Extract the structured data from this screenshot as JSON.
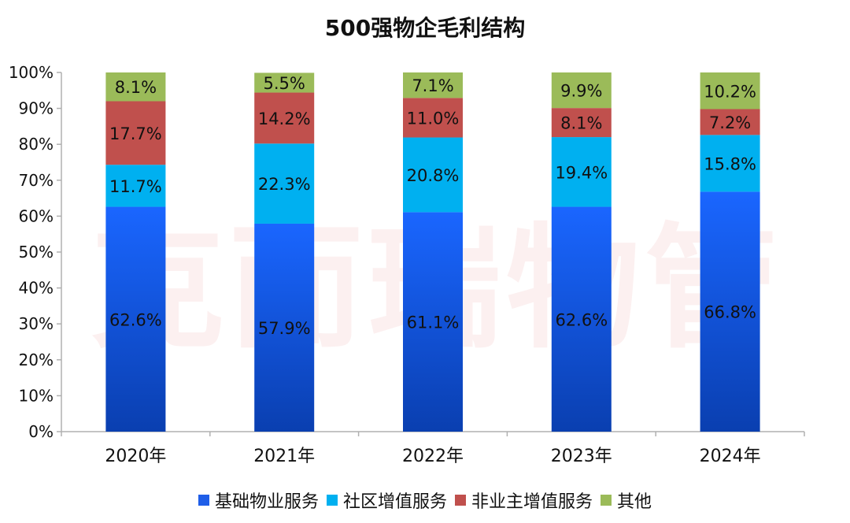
{
  "watermark": "克而瑞物管",
  "chart_data": {
    "type": "bar",
    "stacked": true,
    "title": "500强物企毛利结构",
    "categories": [
      "2020年",
      "2021年",
      "2022年",
      "2023年",
      "2024年"
    ],
    "y_ticks": [
      "0%",
      "10%",
      "20%",
      "30%",
      "40%",
      "50%",
      "60%",
      "70%",
      "80%",
      "90%",
      "100%"
    ],
    "ylim": [
      0,
      100
    ],
    "grid": false,
    "legend_position": "bottom",
    "series": [
      {
        "name": "基础物业服务",
        "color": "#1f5ee8",
        "values": [
          62.6,
          57.9,
          61.1,
          62.6,
          66.8
        ],
        "labels": [
          "62.6%",
          "57.9%",
          "61.1%",
          "62.6%",
          "66.8%"
        ]
      },
      {
        "name": "社区增值服务",
        "color": "#00b0f0",
        "values": [
          11.7,
          22.3,
          20.8,
          19.4,
          15.8
        ],
        "labels": [
          "11.7%",
          "22.3%",
          "20.8%",
          "19.4%",
          "15.8%"
        ]
      },
      {
        "name": "非业主增值服务",
        "color": "#c0504d",
        "values": [
          17.7,
          14.2,
          11.0,
          8.1,
          7.2
        ],
        "labels": [
          "17.7%",
          "14.2%",
          "11.0%",
          "8.1%",
          "7.2%"
        ]
      },
      {
        "name": "其他",
        "color": "#9bbb59",
        "values": [
          8.1,
          5.5,
          7.1,
          9.9,
          10.2
        ],
        "labels": [
          "8.1%",
          "5.5%",
          "7.1%",
          "9.9%",
          "10.2%"
        ]
      }
    ]
  }
}
